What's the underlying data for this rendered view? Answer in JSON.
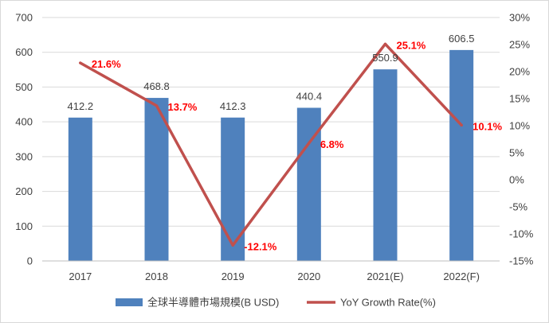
{
  "chart_data": {
    "type": "bar+line",
    "categories": [
      "2017",
      "2018",
      "2019",
      "2020",
      "2021(E)",
      "2022(F)"
    ],
    "series": [
      {
        "name": "全球半導體市場規模(B USD)",
        "type": "bar",
        "axis": "left",
        "color": "#4f81bd",
        "values": [
          412.2,
          468.8,
          412.3,
          440.4,
          550.9,
          606.5
        ],
        "labels": [
          "412.2",
          "468.8",
          "412.3",
          "440.4",
          "550.9",
          "606.5"
        ]
      },
      {
        "name": "YoY Growth Rate(%)",
        "type": "line",
        "axis": "right",
        "color": "#c0504d",
        "label_color": "#ff0000",
        "values": [
          21.6,
          13.7,
          -12.1,
          6.8,
          25.1,
          10.1
        ],
        "labels": [
          "21.6%",
          "13.7%",
          "-12.1%",
          "6.8%",
          "25.1%",
          "10.1%"
        ]
      }
    ],
    "y_left": {
      "min": 0,
      "max": 700,
      "ticks": [
        0,
        100,
        200,
        300,
        400,
        500,
        600,
        700
      ],
      "tick_labels": [
        "0",
        "100",
        "200",
        "300",
        "400",
        "500",
        "600",
        "700"
      ]
    },
    "y_right": {
      "min": -15,
      "max": 30,
      "ticks": [
        -15,
        -10,
        -5,
        0,
        5,
        10,
        15,
        20,
        25,
        30
      ],
      "tick_labels": [
        "-15%",
        "-10%",
        "-5%",
        "0%",
        "5%",
        "10%",
        "15%",
        "20%",
        "25%",
        "30%"
      ]
    },
    "grid": true,
    "legend": {
      "placement": "bottom",
      "entries": [
        "全球半導體市場規模(B USD)",
        "YoY Growth Rate(%)"
      ]
    }
  }
}
